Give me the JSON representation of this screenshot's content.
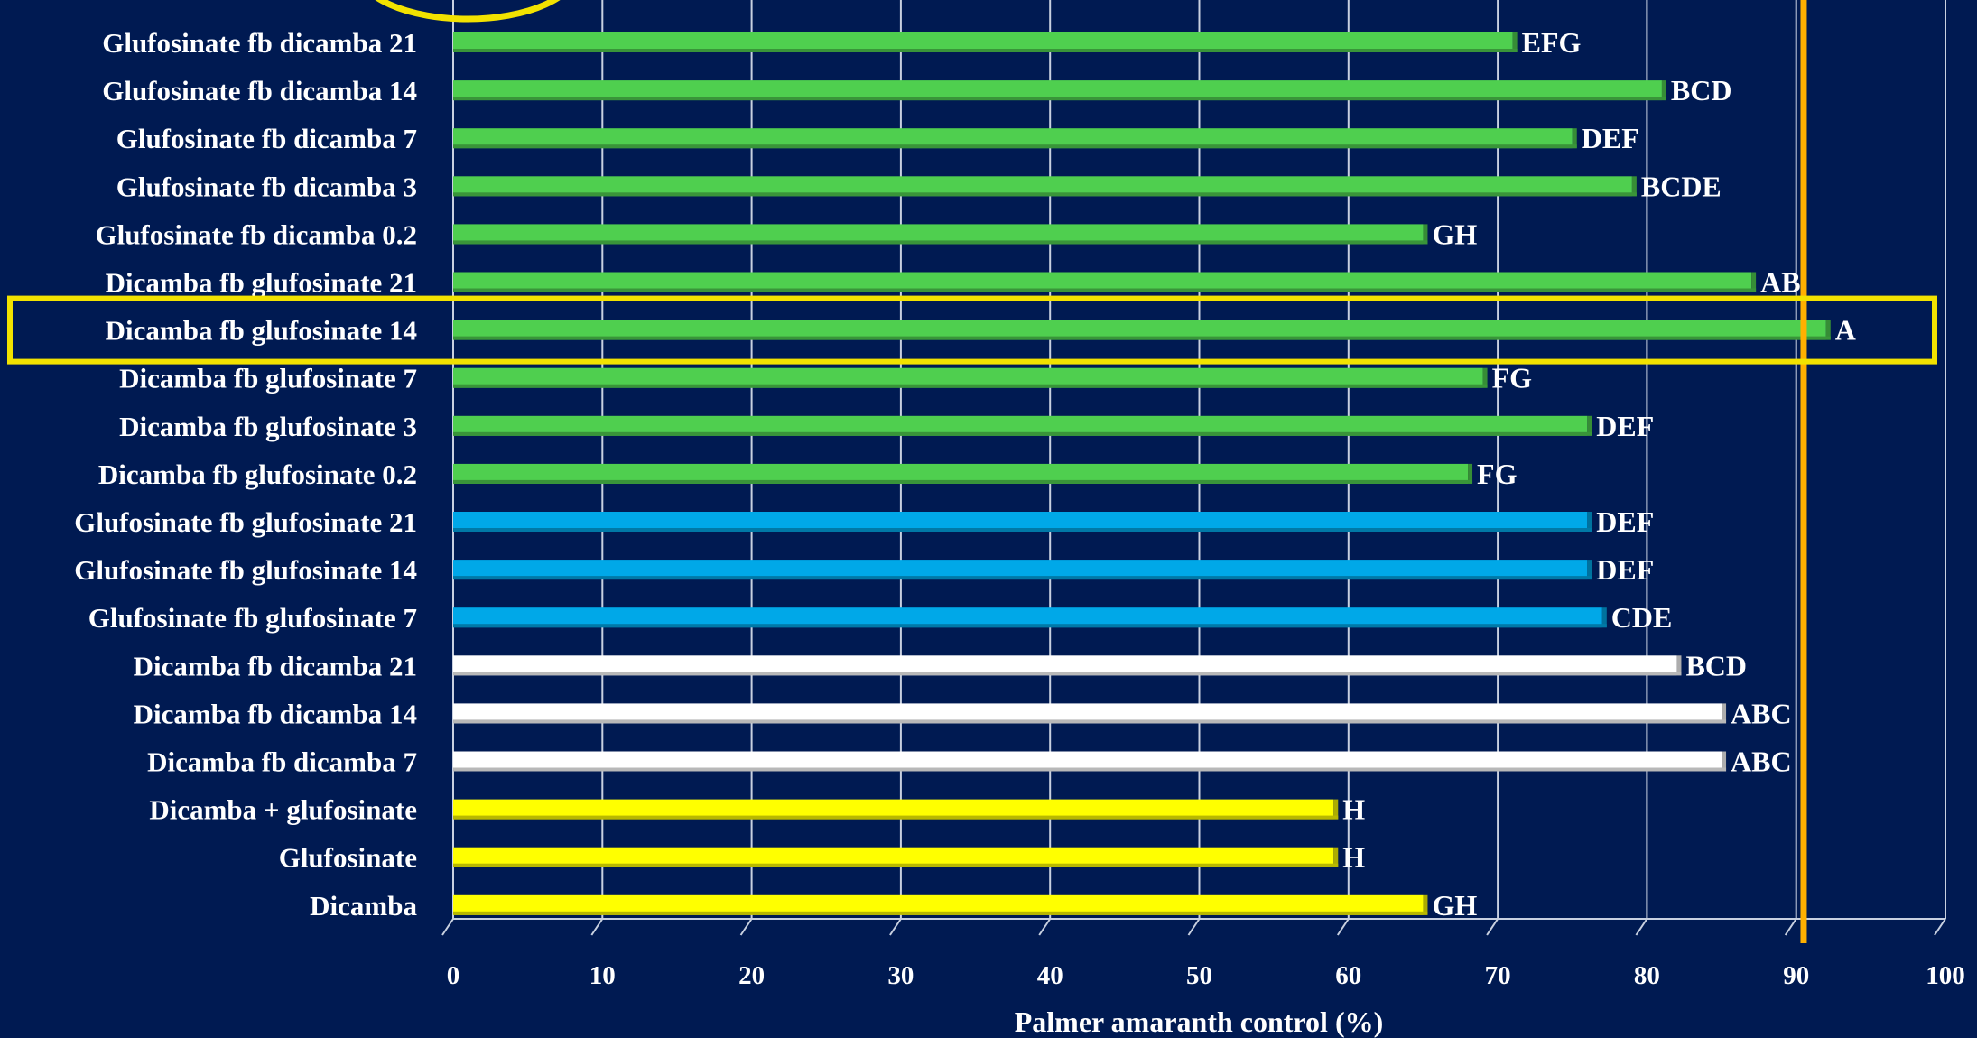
{
  "chart_data": {
    "type": "bar",
    "orientation": "horizontal",
    "title": "",
    "xlabel": "Palmer amaranth control (%)",
    "ylabel": "",
    "xlim": [
      0,
      100
    ],
    "xticks": [
      0,
      10,
      20,
      30,
      40,
      50,
      60,
      70,
      80,
      90,
      100
    ],
    "grid": true,
    "legend": "none",
    "reference_line": {
      "x": 90.5,
      "color": "#ffb000"
    },
    "highlight": {
      "category": "Dicamba fb glufosinate 14",
      "color": "#f2e200"
    },
    "categories": [
      "Glufosinate fb dicamba 21",
      "Glufosinate fb dicamba 14",
      "Glufosinate fb dicamba 7",
      "Glufosinate fb dicamba 3",
      "Glufosinate fb dicamba 0.2",
      "Dicamba fb glufosinate 21",
      "Dicamba fb glufosinate 14",
      "Dicamba fb glufosinate 7",
      "Dicamba fb glufosinate 3",
      "Dicamba fb glufosinate 0.2",
      "Glufosinate fb glufosinate 21",
      "Glufosinate fb glufosinate 14",
      "Glufosinate fb glufosinate 7",
      "Dicamba fb dicamba 21",
      "Dicamba fb dicamba 14",
      "Dicamba fb dicamba 7",
      "Dicamba + glufosinate",
      "Glufosinate",
      "Dicamba"
    ],
    "values": [
      71,
      81,
      75,
      79,
      65,
      87,
      92,
      69,
      76,
      68,
      76,
      76,
      77,
      82,
      85,
      85,
      59,
      59,
      65
    ],
    "data_labels": [
      "EFG",
      "BCD",
      "DEF",
      "BCDE",
      "GH",
      "AB",
      "A",
      "FG",
      "DEF",
      "FG",
      "DEF",
      "DEF",
      "CDE",
      "BCD",
      "ABC",
      "ABC",
      "H",
      "H",
      "GH"
    ],
    "bar_colors": [
      "#4fcf4f",
      "#4fcf4f",
      "#4fcf4f",
      "#4fcf4f",
      "#4fcf4f",
      "#4fcf4f",
      "#4fcf4f",
      "#4fcf4f",
      "#4fcf4f",
      "#4fcf4f",
      "#00a8e8",
      "#00a8e8",
      "#00a8e8",
      "#ffffff",
      "#ffffff",
      "#ffffff",
      "#ffff00",
      "#ffff00",
      "#ffff00"
    ]
  }
}
